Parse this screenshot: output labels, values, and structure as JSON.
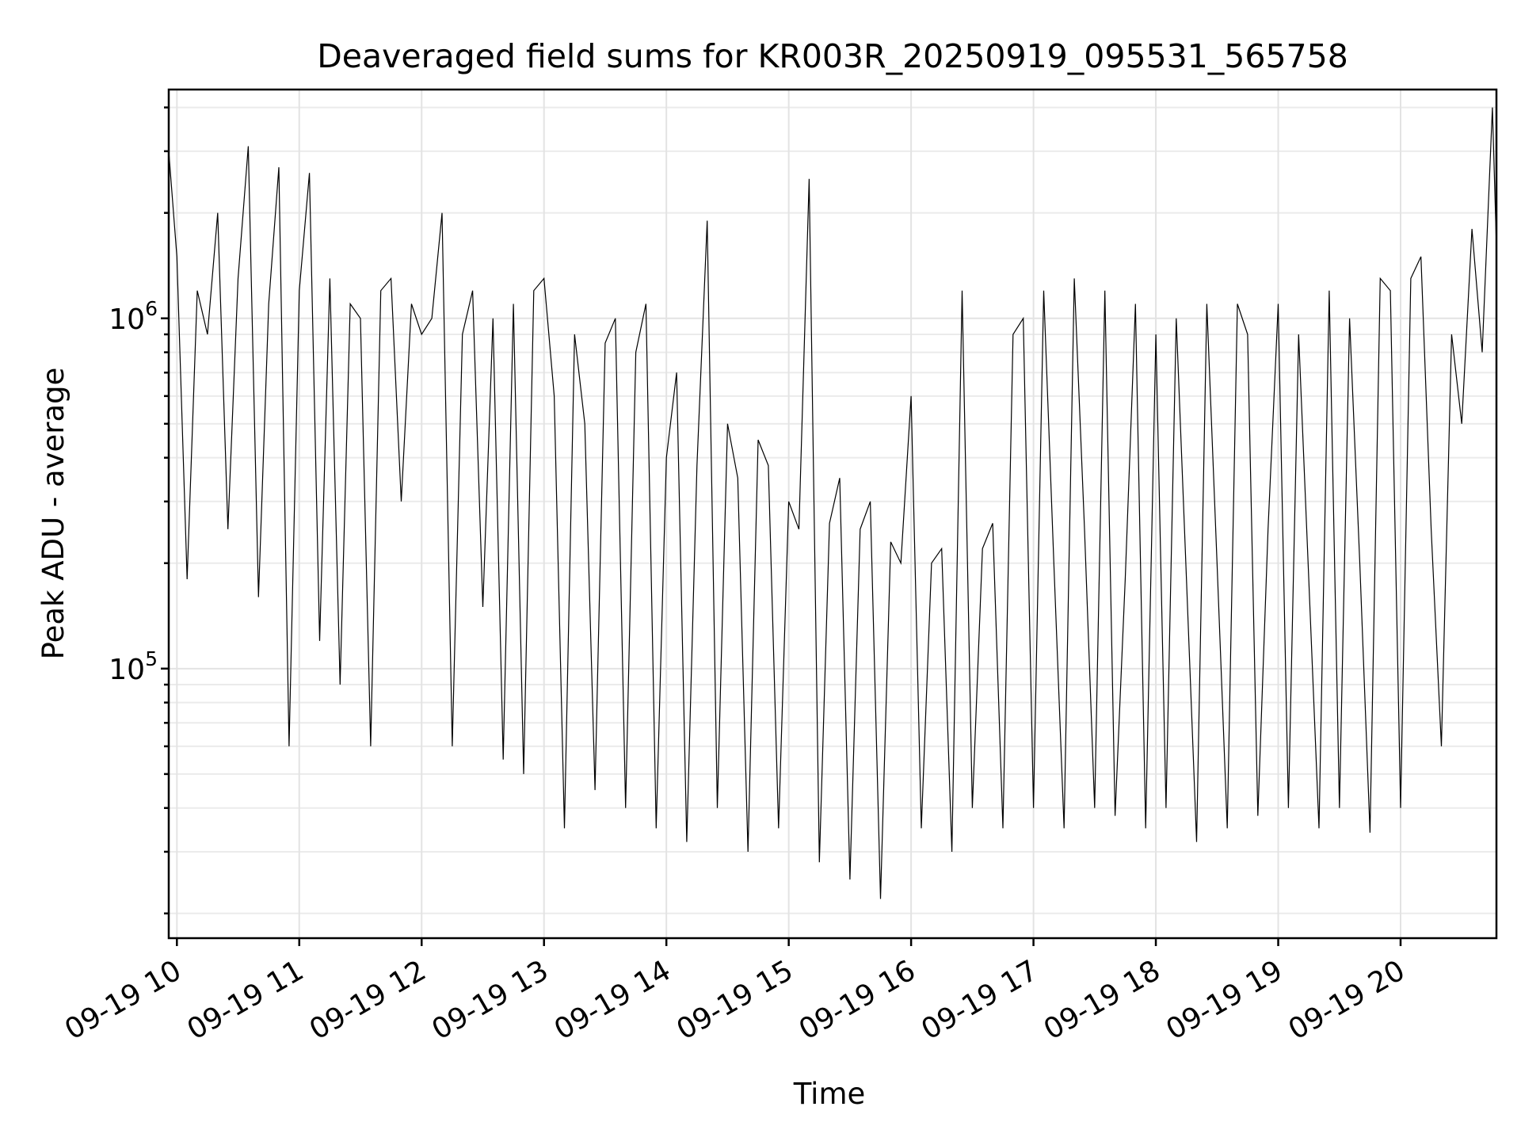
{
  "chart_data": {
    "type": "line",
    "title": "Deaveraged field sums for KR003R_20250919_095531_565758",
    "xlabel": "Time",
    "ylabel": "Peak ADU - average",
    "yscale": "log",
    "ylim": [
      17000,
      4500000
    ],
    "xlim": [
      "2025-09-19 09:56",
      "2025-09-19 20:47"
    ],
    "grid": true,
    "x_ticks": [
      {
        "value": "2025-09-19 10:00",
        "label": "09-19 10"
      },
      {
        "value": "2025-09-19 11:00",
        "label": "09-19 11"
      },
      {
        "value": "2025-09-19 12:00",
        "label": "09-19 12"
      },
      {
        "value": "2025-09-19 13:00",
        "label": "09-19 13"
      },
      {
        "value": "2025-09-19 14:00",
        "label": "09-19 14"
      },
      {
        "value": "2025-09-19 15:00",
        "label": "09-19 15"
      },
      {
        "value": "2025-09-19 16:00",
        "label": "09-19 16"
      },
      {
        "value": "2025-09-19 17:00",
        "label": "09-19 17"
      },
      {
        "value": "2025-09-19 18:00",
        "label": "09-19 18"
      },
      {
        "value": "2025-09-19 19:00",
        "label": "09-19 19"
      },
      {
        "value": "2025-09-19 20:00",
        "label": "09-19 20"
      }
    ],
    "y_ticks": [
      {
        "value": 100000,
        "base": "10",
        "exp": "5"
      },
      {
        "value": 1000000,
        "base": "10",
        "exp": "6"
      }
    ],
    "series": [
      {
        "color": "#000000",
        "x": [
          "2025-09-19 09:56",
          "2025-09-19 10:00",
          "2025-09-19 10:05",
          "2025-09-19 10:10",
          "2025-09-19 10:15",
          "2025-09-19 10:20",
          "2025-09-19 10:25",
          "2025-09-19 10:30",
          "2025-09-19 10:35",
          "2025-09-19 10:40",
          "2025-09-19 10:45",
          "2025-09-19 10:50",
          "2025-09-19 10:55",
          "2025-09-19 11:00",
          "2025-09-19 11:05",
          "2025-09-19 11:10",
          "2025-09-19 11:15",
          "2025-09-19 11:20",
          "2025-09-19 11:25",
          "2025-09-19 11:30",
          "2025-09-19 11:35",
          "2025-09-19 11:40",
          "2025-09-19 11:45",
          "2025-09-19 11:50",
          "2025-09-19 11:55",
          "2025-09-19 12:00",
          "2025-09-19 12:05",
          "2025-09-19 12:10",
          "2025-09-19 12:15",
          "2025-09-19 12:20",
          "2025-09-19 12:25",
          "2025-09-19 12:30",
          "2025-09-19 12:35",
          "2025-09-19 12:40",
          "2025-09-19 12:45",
          "2025-09-19 12:50",
          "2025-09-19 12:55",
          "2025-09-19 13:00",
          "2025-09-19 13:05",
          "2025-09-19 13:10",
          "2025-09-19 13:15",
          "2025-09-19 13:20",
          "2025-09-19 13:25",
          "2025-09-19 13:30",
          "2025-09-19 13:35",
          "2025-09-19 13:40",
          "2025-09-19 13:45",
          "2025-09-19 13:50",
          "2025-09-19 13:55",
          "2025-09-19 14:00",
          "2025-09-19 14:05",
          "2025-09-19 14:10",
          "2025-09-19 14:15",
          "2025-09-19 14:20",
          "2025-09-19 14:25",
          "2025-09-19 14:30",
          "2025-09-19 14:35",
          "2025-09-19 14:40",
          "2025-09-19 14:45",
          "2025-09-19 14:50",
          "2025-09-19 14:55",
          "2025-09-19 15:00",
          "2025-09-19 15:05",
          "2025-09-19 15:10",
          "2025-09-19 15:15",
          "2025-09-19 15:20",
          "2025-09-19 15:25",
          "2025-09-19 15:30",
          "2025-09-19 15:35",
          "2025-09-19 15:40",
          "2025-09-19 15:45",
          "2025-09-19 15:50",
          "2025-09-19 15:55",
          "2025-09-19 16:00",
          "2025-09-19 16:05",
          "2025-09-19 16:10",
          "2025-09-19 16:15",
          "2025-09-19 16:20",
          "2025-09-19 16:25",
          "2025-09-19 16:30",
          "2025-09-19 16:35",
          "2025-09-19 16:40",
          "2025-09-19 16:45",
          "2025-09-19 16:50",
          "2025-09-19 16:55",
          "2025-09-19 17:00",
          "2025-09-19 17:05",
          "2025-09-19 17:10",
          "2025-09-19 17:15",
          "2025-09-19 17:20",
          "2025-09-19 17:25",
          "2025-09-19 17:30",
          "2025-09-19 17:35",
          "2025-09-19 17:40",
          "2025-09-19 17:45",
          "2025-09-19 17:50",
          "2025-09-19 17:55",
          "2025-09-19 18:00",
          "2025-09-19 18:05",
          "2025-09-19 18:10",
          "2025-09-19 18:15",
          "2025-09-19 18:20",
          "2025-09-19 18:25",
          "2025-09-19 18:30",
          "2025-09-19 18:35",
          "2025-09-19 18:40",
          "2025-09-19 18:45",
          "2025-09-19 18:50",
          "2025-09-19 18:55",
          "2025-09-19 19:00",
          "2025-09-19 19:05",
          "2025-09-19 19:10",
          "2025-09-19 19:15",
          "2025-09-19 19:20",
          "2025-09-19 19:25",
          "2025-09-19 19:30",
          "2025-09-19 19:35",
          "2025-09-19 19:40",
          "2025-09-19 19:45",
          "2025-09-19 19:50",
          "2025-09-19 19:55",
          "2025-09-19 20:00",
          "2025-09-19 20:05",
          "2025-09-19 20:10",
          "2025-09-19 20:15",
          "2025-09-19 20:20",
          "2025-09-19 20:25",
          "2025-09-19 20:30",
          "2025-09-19 20:35",
          "2025-09-19 20:40",
          "2025-09-19 20:45",
          "2025-09-19 20:47"
        ],
        "y": [
          3000000,
          1500000,
          180000,
          1200000,
          900000,
          2000000,
          250000,
          1300000,
          3100000,
          160000,
          1100000,
          2700000,
          60000,
          1200000,
          2600000,
          120000,
          1300000,
          90000,
          1100000,
          1000000,
          60000,
          1200000,
          1300000,
          300000,
          1100000,
          900000,
          1000000,
          2000000,
          60000,
          900000,
          1200000,
          150000,
          1000000,
          55000,
          1100000,
          50000,
          1200000,
          1300000,
          600000,
          35000,
          900000,
          500000,
          45000,
          850000,
          1000000,
          40000,
          800000,
          1100000,
          35000,
          400000,
          700000,
          32000,
          380000,
          1900000,
          40000,
          500000,
          350000,
          30000,
          450000,
          380000,
          35000,
          300000,
          250000,
          2500000,
          28000,
          260000,
          350000,
          25000,
          250000,
          300000,
          22000,
          230000,
          200000,
          600000,
          35000,
          200000,
          220000,
          30000,
          1200000,
          40000,
          220000,
          260000,
          35000,
          900000,
          1000000,
          40000,
          1200000,
          200000,
          35000,
          1300000,
          250000,
          40000,
          1200000,
          38000,
          180000,
          1100000,
          35000,
          900000,
          40000,
          1000000,
          180000,
          32000,
          1100000,
          200000,
          35000,
          1100000,
          900000,
          38000,
          250000,
          1100000,
          40000,
          900000,
          180000,
          35000,
          1200000,
          40000,
          1000000,
          200000,
          34000,
          1300000,
          1200000,
          40000,
          1300000,
          1500000,
          250000,
          60000,
          900000,
          500000,
          1800000,
          800000,
          4000000,
          1600000
        ]
      }
    ]
  }
}
